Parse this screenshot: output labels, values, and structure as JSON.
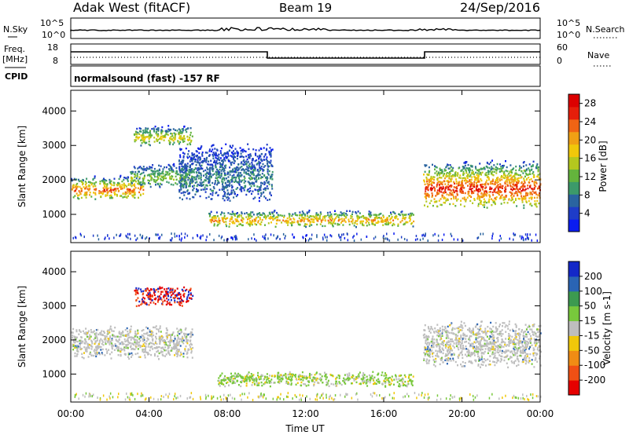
{
  "header": {
    "station": "Adak West (fitACF)",
    "beam": "Beam 19",
    "date": "24/Sep/2016"
  },
  "panels": {
    "nsky_label": "N.Sky",
    "nsearch_label": "N.Search",
    "freq_label_top": "Freq.",
    "freq_label_unit": "[MHz]",
    "cpid_label": "CPID",
    "nave_label": "Nave",
    "cpid_text": "normalsound (fast) -157 RF",
    "noise_ticks": [
      "10^5",
      "10^0"
    ],
    "freq_ticks": [
      "18",
      "8"
    ],
    "nave_ticks": [
      "60",
      "0"
    ]
  },
  "colors": {
    "power": [
      "#0a1cf0",
      "#1e3cc8",
      "#2a64a0",
      "#3c9a6a",
      "#64b43c",
      "#b4c81e",
      "#f0c80a",
      "#f0a014",
      "#f06414",
      "#e61e0a",
      "#dc0000"
    ],
    "velocity": [
      "#1428c8",
      "#2a64b4",
      "#3c9a50",
      "#78c83c",
      "#bebebe",
      "#f0c80a",
      "#f08c14",
      "#f05014",
      "#e60000"
    ]
  },
  "chart_data": [
    {
      "type": "heatmap",
      "name": "power",
      "xlabel": "",
      "ylabel": "Slant Range [km]",
      "x_ticks": [
        "00:00",
        "04:00",
        "08:00",
        "12:00",
        "16:00",
        "20:00",
        "00:00"
      ],
      "y_ticks": [
        "1000",
        "2000",
        "3000",
        "4000"
      ],
      "ylim": [
        180,
        4600
      ],
      "xlim_hours": [
        0,
        24
      ],
      "colorbar_label": "Power [dB]",
      "colorbar_ticks": [
        "4",
        "8",
        "12",
        "16",
        "20",
        "24",
        "28"
      ],
      "colorbar_range": [
        0,
        30
      ],
      "features": [
        {
          "t0": 0.0,
          "t1": 3.7,
          "r0": 1450,
          "r1": 2150,
          "peak_db": 25
        },
        {
          "t0": 3.0,
          "t1": 6.2,
          "r0": 1800,
          "r1": 2500,
          "peak_db": 14
        },
        {
          "t0": 3.2,
          "t1": 6.2,
          "r0": 3000,
          "r1": 3600,
          "peak_db": 18
        },
        {
          "t0": 5.5,
          "t1": 10.3,
          "r0": 1400,
          "r1": 3100,
          "peak_db": 8
        },
        {
          "t0": 7.0,
          "t1": 17.5,
          "r0": 650,
          "r1": 1150,
          "peak_db": 22
        },
        {
          "t0": 18.0,
          "t1": 24.0,
          "r0": 1200,
          "r1": 2600,
          "peak_db": 28
        }
      ]
    },
    {
      "type": "heatmap",
      "name": "velocity",
      "xlabel": "Time UT",
      "ylabel": "Slant Range [km]",
      "x_ticks": [
        "00:00",
        "04:00",
        "08:00",
        "12:00",
        "16:00",
        "20:00",
        "00:00"
      ],
      "y_ticks": [
        "1000",
        "2000",
        "3000",
        "4000"
      ],
      "ylim": [
        180,
        4600
      ],
      "xlim_hours": [
        0,
        24
      ],
      "colorbar_label": "Velocity [m s-1]",
      "colorbar_ticks": [
        "200",
        "100",
        "50",
        "15",
        "-15",
        "-50",
        "-100",
        "-200"
      ],
      "features": [
        {
          "t0": 0.0,
          "t1": 6.2,
          "r0": 1450,
          "r1": 2450,
          "vel": 0
        },
        {
          "t0": 3.2,
          "t1": 6.2,
          "r0": 3000,
          "r1": 3600,
          "vel": -150
        },
        {
          "t0": 7.5,
          "t1": 17.5,
          "r0": 650,
          "r1": 1100,
          "vel": 10
        },
        {
          "t0": 18.0,
          "t1": 24.0,
          "r0": 1200,
          "r1": 2600,
          "vel": 0
        }
      ]
    }
  ]
}
